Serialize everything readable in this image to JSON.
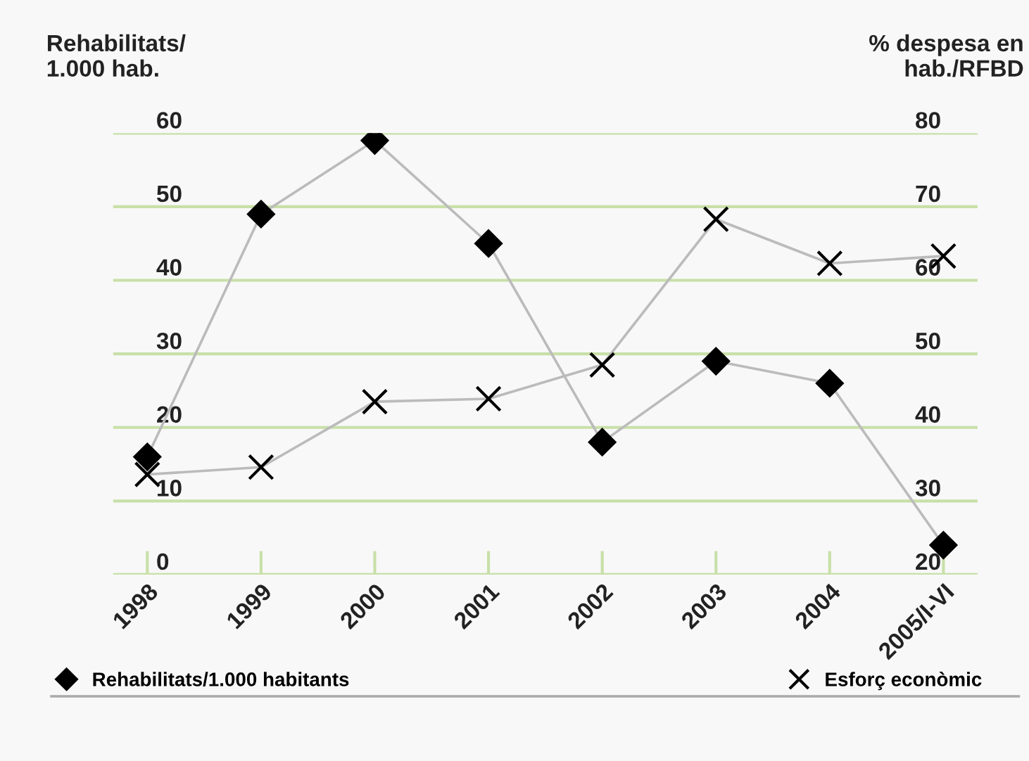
{
  "chart_data": {
    "type": "line",
    "categories": [
      "1998",
      "1999",
      "2000",
      "2001",
      "2002",
      "2003",
      "2004",
      "2005/I-VI"
    ],
    "series": [
      {
        "name": "Rehabilitats/1.000 habitants",
        "color": "#000000",
        "marker": "diamond",
        "values": [
          16,
          49,
          59,
          45,
          18,
          29,
          26,
          4
        ]
      },
      {
        "name": "Esforç econòmic",
        "color": "#000000",
        "marker": "cross",
        "axis": "y2",
        "values": [
          33.6,
          34.6,
          43.5,
          43.9,
          48.5,
          68.3,
          62.3,
          63.3
        ]
      }
    ],
    "ylabel": "Rehabilitats/\n1.000 hab.",
    "y2label": "% despesa en\nhab./RFBD",
    "ylim": [
      0,
      60
    ],
    "yticks": [
      0,
      10,
      20,
      30,
      40,
      50,
      60
    ],
    "y2lim": [
      20,
      80
    ],
    "y2ticks": [
      20,
      30,
      40,
      50,
      60,
      70,
      80
    ],
    "grid": "y",
    "legend": "bottom"
  }
}
